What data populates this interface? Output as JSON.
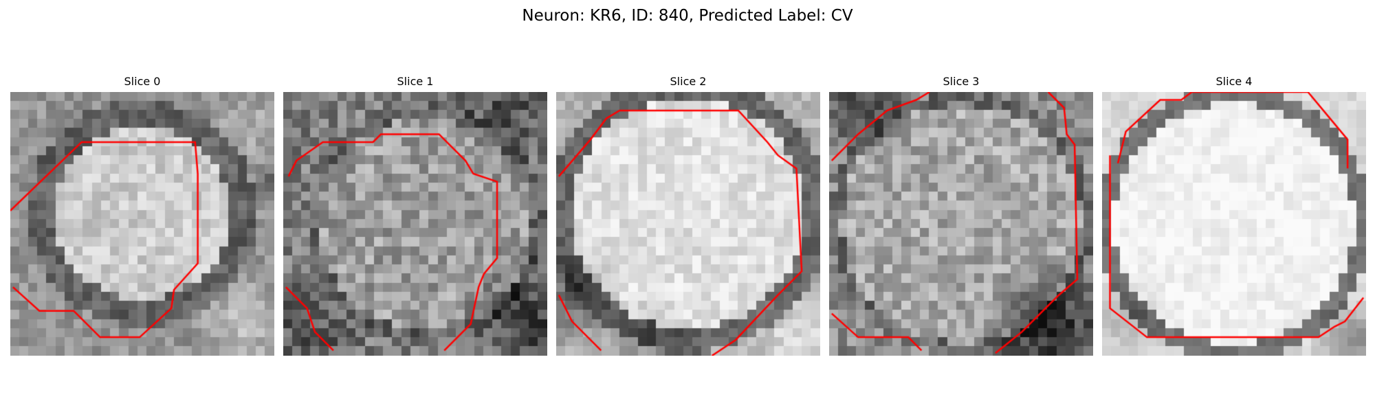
{
  "figure": {
    "title": "Neuron: KR6, ID: 840, Predicted Label: CV"
  },
  "panels": [
    {
      "title": "Slice 0",
      "image": "neuron-slice-0"
    },
    {
      "title": "Slice 1",
      "image": "neuron-slice-1"
    },
    {
      "title": "Slice 2",
      "image": "neuron-slice-2"
    },
    {
      "title": "Slice 3",
      "image": "neuron-slice-3"
    },
    {
      "title": "Slice 4",
      "image": "neuron-slice-4"
    }
  ],
  "colors": {
    "contour": "#ff0000",
    "background": "#ffffff"
  }
}
